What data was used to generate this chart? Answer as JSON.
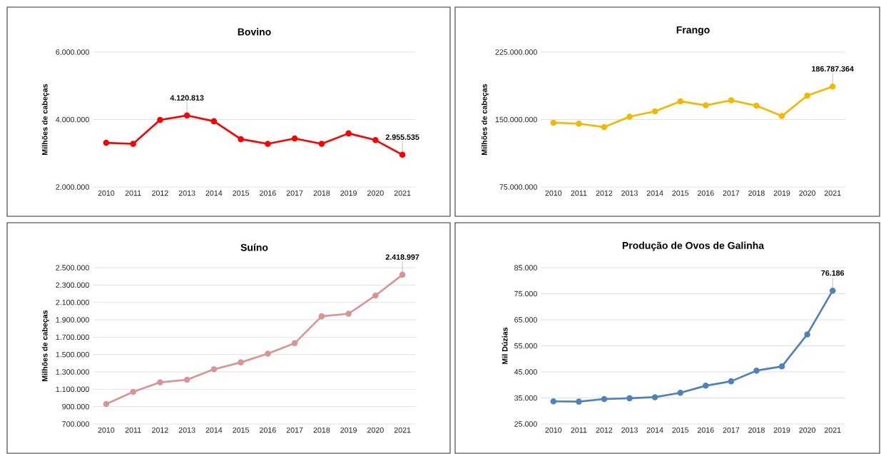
{
  "chart_data": [
    {
      "type": "line",
      "title": "Bovino",
      "ylabel": "Milhões  de cabeças",
      "categories": [
        "2010",
        "2011",
        "2012",
        "2013",
        "2014",
        "2015",
        "2016",
        "2017",
        "2018",
        "2019",
        "2020",
        "2021"
      ],
      "series": [
        {
          "color": "#ff0000",
          "values": [
            3310000,
            3280000,
            3990000,
            4120813,
            3950000,
            3420000,
            3280000,
            3440000,
            3280000,
            3590000,
            3390000,
            2955535
          ]
        }
      ],
      "ylim": [
        2000000,
        6000000
      ],
      "yticks": [
        {
          "value": 2000000,
          "label": "2.000.000"
        },
        {
          "value": 4000000,
          "label": "4.000.000"
        },
        {
          "value": 6000000,
          "label": "6.000.000"
        }
      ],
      "grid": "y",
      "marker": "circle",
      "annotations": [
        {
          "text": "4.120.813",
          "x": "2013",
          "y": 4120813
        },
        {
          "text": "2.955.535",
          "x": "2021",
          "y": 2955535
        }
      ]
    },
    {
      "type": "line",
      "title": "Frango",
      "ylabel": "Milhões  de cabeças",
      "categories": [
        "2010",
        "2011",
        "2012",
        "2013",
        "2014",
        "2015",
        "2016",
        "2017",
        "2018",
        "2019",
        "2020",
        "2021"
      ],
      "series": [
        {
          "color": "#f5b800",
          "values": [
            146500000,
            145400000,
            141600000,
            153200000,
            159100000,
            170300000,
            165800000,
            171400000,
            165400000,
            153900000,
            176600000,
            186787364
          ]
        }
      ],
      "ylim": [
        75000000,
        225000000
      ],
      "yticks": [
        {
          "value": 75000000,
          "label": "75.000.000"
        },
        {
          "value": 150000000,
          "label": "150.000.000"
        },
        {
          "value": 225000000,
          "label": "225.000.000"
        }
      ],
      "grid": "y",
      "marker": "circle",
      "annotations": [
        {
          "text": "186.787.364",
          "x": "2021",
          "y": 186787364
        }
      ]
    },
    {
      "type": "line",
      "title": "Suíno",
      "ylabel": "Milhões  de cabeças",
      "categories": [
        "2010",
        "2011",
        "2012",
        "2013",
        "2014",
        "2015",
        "2016",
        "2017",
        "2018",
        "2019",
        "2020",
        "2021"
      ],
      "series": [
        {
          "color": "#d99594",
          "values": [
            930000,
            1070000,
            1180000,
            1210000,
            1330000,
            1410000,
            1510000,
            1630000,
            1940000,
            1970000,
            2180000,
            2418997
          ]
        }
      ],
      "ylim": [
        700000,
        2500000
      ],
      "yticks": [
        {
          "value": 700000,
          "label": "700.000"
        },
        {
          "value": 900000,
          "label": "900.000"
        },
        {
          "value": 1100000,
          "label": "1.100.000"
        },
        {
          "value": 1300000,
          "label": "1.300.000"
        },
        {
          "value": 1500000,
          "label": "1.500.000"
        },
        {
          "value": 1700000,
          "label": "1.700.000"
        },
        {
          "value": 1900000,
          "label": "1.900.000"
        },
        {
          "value": 2100000,
          "label": "2.100.000"
        },
        {
          "value": 2300000,
          "label": "2.300.000"
        },
        {
          "value": 2500000,
          "label": "2.500.000"
        }
      ],
      "grid": "y",
      "marker": "circle",
      "annotations": [
        {
          "text": "2.418.997",
          "x": "2021",
          "y": 2418997
        }
      ]
    },
    {
      "type": "line",
      "title": "Produção de Ovos de Galinha",
      "ylabel": "Mil Dúzias",
      "categories": [
        "2010",
        "2011",
        "2012",
        "2013",
        "2014",
        "2015",
        "2016",
        "2017",
        "2018",
        "2019",
        "2020",
        "2021"
      ],
      "series": [
        {
          "color": "#4f81bd",
          "values": [
            33700,
            33600,
            34600,
            34900,
            35300,
            37000,
            39700,
            41400,
            45500,
            47100,
            59400,
            76186
          ]
        }
      ],
      "ylim": [
        25000,
        85000
      ],
      "yticks": [
        {
          "value": 25000,
          "label": "25.000"
        },
        {
          "value": 35000,
          "label": "35.000"
        },
        {
          "value": 45000,
          "label": "45.000"
        },
        {
          "value": 55000,
          "label": "55.000"
        },
        {
          "value": 65000,
          "label": "65.000"
        },
        {
          "value": 75000,
          "label": "75.000"
        },
        {
          "value": 85000,
          "label": "85.000"
        }
      ],
      "grid": "y",
      "marker": "circle",
      "annotations": [
        {
          "text": "76.186",
          "x": "2021",
          "y": 76186
        }
      ]
    }
  ]
}
